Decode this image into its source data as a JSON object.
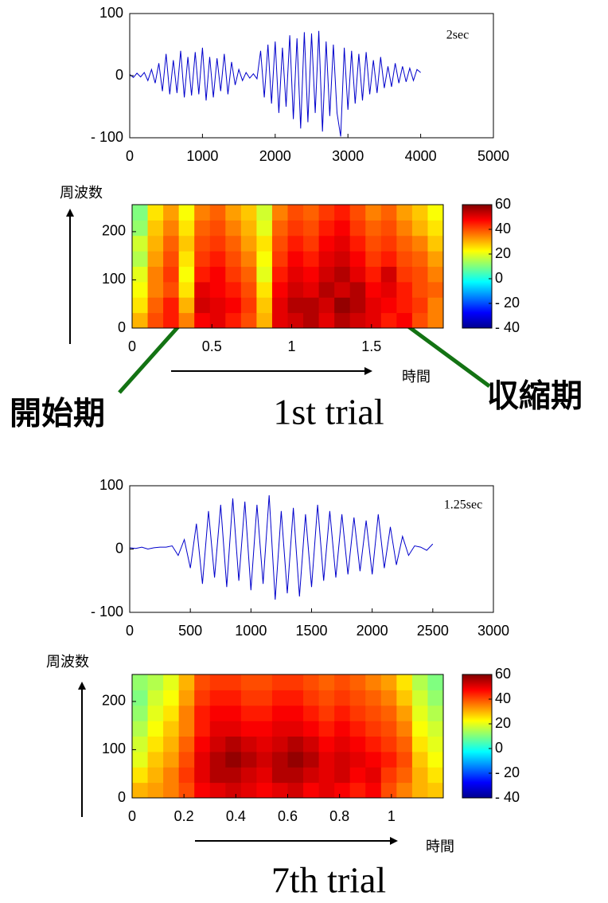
{
  "chart_data": [
    {
      "type": "line",
      "color": "#0000cc",
      "annotation": "2sec",
      "x": [
        0,
        50,
        100,
        150,
        200,
        250,
        300,
        350,
        400,
        450,
        500,
        550,
        600,
        650,
        700,
        750,
        800,
        850,
        900,
        950,
        1000,
        1050,
        1100,
        1150,
        1200,
        1250,
        1300,
        1350,
        1400,
        1450,
        1500,
        1550,
        1600,
        1650,
        1700,
        1750,
        1800,
        1850,
        1900,
        1950,
        2000,
        2050,
        2100,
        2150,
        2200,
        2250,
        2300,
        2350,
        2400,
        2450,
        2500,
        2550,
        2600,
        2650,
        2700,
        2750,
        2800,
        2850,
        2900,
        2950,
        3000,
        3050,
        3100,
        3150,
        3200,
        3250,
        3300,
        3350,
        3400,
        3450,
        3500,
        3550,
        3600,
        3650,
        3700,
        3750,
        3800,
        3850,
        3900,
        3950,
        4000
      ],
      "values": [
        2,
        -3,
        4,
        -2,
        5,
        -8,
        10,
        -12,
        20,
        -25,
        35,
        -30,
        25,
        -28,
        40,
        -35,
        30,
        -32,
        38,
        -30,
        45,
        -40,
        30,
        -35,
        28,
        -25,
        35,
        -30,
        22,
        -15,
        10,
        -8,
        5,
        -4,
        3,
        -5,
        40,
        -35,
        50,
        -45,
        55,
        -60,
        45,
        -50,
        65,
        -70,
        60,
        -85,
        70,
        -75,
        68,
        -60,
        72,
        -90,
        55,
        -65,
        50,
        -60,
        -98,
        45,
        -55,
        40,
        -45,
        35,
        -40,
        38,
        -30,
        25,
        -28,
        30,
        -20,
        15,
        -18,
        20,
        -12,
        15,
        -10,
        12,
        -8,
        10,
        5
      ],
      "xlim": [
        0,
        5000
      ],
      "xticks": [
        0,
        1000,
        2000,
        3000,
        4000,
        5000
      ],
      "ylim": [
        -100,
        100
      ],
      "yticks": [
        {
          "value": -100,
          "label": "- 100"
        },
        0,
        100
      ]
    },
    {
      "type": "heatmap",
      "colormap": "jet",
      "xlabel": "時間",
      "ylabel": "周波数",
      "x_edges": [
        0,
        0.0975,
        0.195,
        0.2925,
        0.39,
        0.4875,
        0.585,
        0.6825,
        0.78,
        0.8775,
        0.975,
        1.0725,
        1.17,
        1.2675,
        1.365,
        1.4625,
        1.56,
        1.6575,
        1.755,
        1.8525,
        1.95
      ],
      "y_edges": [
        0,
        32,
        64,
        96,
        128,
        160,
        192,
        224,
        256
      ],
      "z": [
        [
          30,
          40,
          45,
          35,
          48,
          50,
          45,
          40,
          30,
          50,
          52,
          55,
          50,
          55,
          52,
          50,
          45,
          48,
          40,
          35
        ],
        [
          25,
          38,
          45,
          30,
          52,
          50,
          48,
          42,
          28,
          50,
          55,
          55,
          52,
          58,
          55,
          50,
          48,
          45,
          42,
          35
        ],
        [
          22,
          35,
          40,
          25,
          50,
          48,
          45,
          40,
          25,
          48,
          52,
          50,
          55,
          52,
          55,
          48,
          50,
          45,
          40,
          38
        ],
        [
          20,
          35,
          42,
          22,
          45,
          48,
          42,
          38,
          20,
          45,
          50,
          48,
          52,
          55,
          50,
          45,
          52,
          42,
          40,
          35
        ],
        [
          15,
          32,
          40,
          25,
          42,
          45,
          40,
          35,
          22,
          42,
          48,
          45,
          50,
          52,
          48,
          42,
          45,
          40,
          38,
          32
        ],
        [
          18,
          30,
          38,
          28,
          40,
          42,
          38,
          32,
          25,
          40,
          45,
          42,
          48,
          50,
          45,
          40,
          42,
          38,
          35,
          28
        ],
        [
          12,
          28,
          35,
          25,
          38,
          40,
          35,
          30,
          20,
          38,
          42,
          40,
          45,
          48,
          42,
          38,
          40,
          35,
          30,
          25
        ],
        [
          10,
          25,
          32,
          22,
          35,
          38,
          32,
          28,
          18,
          35,
          40,
          38,
          42,
          45,
          40,
          35,
          38,
          32,
          28,
          22
        ]
      ],
      "xlim": [
        0,
        1.95
      ],
      "xticks": [
        0,
        0.5,
        1,
        1.5
      ],
      "ylim": [
        0,
        256
      ],
      "yticks": [
        0,
        100,
        200
      ],
      "clim": [
        -40,
        60
      ],
      "cticks": [
        60,
        40,
        20,
        0,
        {
          "value": -20,
          "label": "- 20"
        },
        {
          "value": -40,
          "label": "- 40"
        }
      ]
    },
    {
      "type": "line",
      "color": "#0000cc",
      "annotation": "1.25sec",
      "x": [
        0,
        50,
        100,
        150,
        200,
        250,
        300,
        350,
        400,
        450,
        500,
        550,
        600,
        650,
        700,
        750,
        800,
        850,
        900,
        950,
        1000,
        1050,
        1100,
        1150,
        1200,
        1250,
        1300,
        1350,
        1400,
        1450,
        1500,
        1550,
        1600,
        1650,
        1700,
        1750,
        1800,
        1850,
        1900,
        1950,
        2000,
        2050,
        2100,
        2150,
        2200,
        2250,
        2300,
        2350,
        2400,
        2450,
        2500
      ],
      "values": [
        2,
        1,
        3,
        0,
        2,
        3,
        3,
        5,
        -10,
        15,
        -30,
        40,
        -55,
        60,
        -45,
        70,
        -60,
        80,
        -50,
        75,
        -65,
        70,
        -55,
        85,
        -80,
        60,
        -70,
        65,
        -75,
        55,
        -60,
        70,
        -50,
        60,
        -45,
        55,
        -40,
        50,
        -35,
        45,
        -40,
        55,
        -30,
        35,
        -25,
        20,
        -10,
        5,
        3,
        -2,
        8
      ],
      "xlim": [
        0,
        3000
      ],
      "xticks": [
        0,
        500,
        1000,
        1500,
        2000,
        2500,
        3000
      ],
      "ylim": [
        -100,
        100
      ],
      "yticks": [
        {
          "value": -100,
          "label": "- 100"
        },
        0,
        100
      ]
    },
    {
      "type": "heatmap",
      "colormap": "jet",
      "xlabel": "時間",
      "ylabel": "周波数",
      "x_edges": [
        0,
        0.06,
        0.12,
        0.18,
        0.24,
        0.3,
        0.36,
        0.42,
        0.48,
        0.54,
        0.6,
        0.66,
        0.72,
        0.78,
        0.84,
        0.9,
        0.96,
        1.02,
        1.08,
        1.14,
        1.2
      ],
      "y_edges": [
        0,
        32,
        64,
        96,
        128,
        160,
        192,
        224,
        256
      ],
      "z": [
        [
          30,
          32,
          35,
          40,
          48,
          50,
          52,
          50,
          48,
          50,
          52,
          48,
          50,
          48,
          45,
          48,
          40,
          35,
          30,
          28
        ],
        [
          25,
          30,
          35,
          42,
          50,
          55,
          55,
          52,
          50,
          55,
          55,
          52,
          50,
          52,
          48,
          50,
          42,
          38,
          30,
          25
        ],
        [
          20,
          28,
          32,
          40,
          50,
          55,
          58,
          55,
          52,
          55,
          58,
          55,
          50,
          52,
          50,
          48,
          45,
          40,
          28,
          22
        ],
        [
          18,
          25,
          30,
          38,
          48,
          52,
          55,
          52,
          50,
          52,
          55,
          52,
          48,
          50,
          48,
          45,
          42,
          38,
          25,
          20
        ],
        [
          15,
          22,
          28,
          35,
          45,
          50,
          50,
          48,
          48,
          50,
          50,
          48,
          45,
          48,
          45,
          42,
          40,
          35,
          22,
          18
        ],
        [
          12,
          20,
          25,
          35,
          45,
          48,
          48,
          45,
          45,
          48,
          48,
          45,
          42,
          45,
          42,
          40,
          38,
          32,
          20,
          15
        ],
        [
          10,
          18,
          22,
          32,
          42,
          45,
          45,
          42,
          42,
          45,
          45,
          42,
          40,
          42,
          40,
          38,
          35,
          28,
          18,
          12
        ],
        [
          12,
          15,
          20,
          30,
          40,
          42,
          42,
          40,
          40,
          42,
          42,
          40,
          38,
          40,
          38,
          35,
          32,
          25,
          15,
          10
        ]
      ],
      "xlim": [
        0,
        1.2
      ],
      "xticks": [
        0,
        0.2,
        0.4,
        0.6,
        0.8,
        1
      ],
      "ylim": [
        0,
        256
      ],
      "yticks": [
        0,
        100,
        200
      ],
      "clim": [
        -40,
        60
      ],
      "cticks": [
        60,
        40,
        20,
        0,
        {
          "value": -20,
          "label": "- 20"
        },
        {
          "value": -40,
          "label": "- 40"
        }
      ]
    }
  ],
  "annotations": {
    "onset": "開始期",
    "contraction": "収縮期",
    "captions": [
      "1st trial",
      "7th trial"
    ]
  }
}
